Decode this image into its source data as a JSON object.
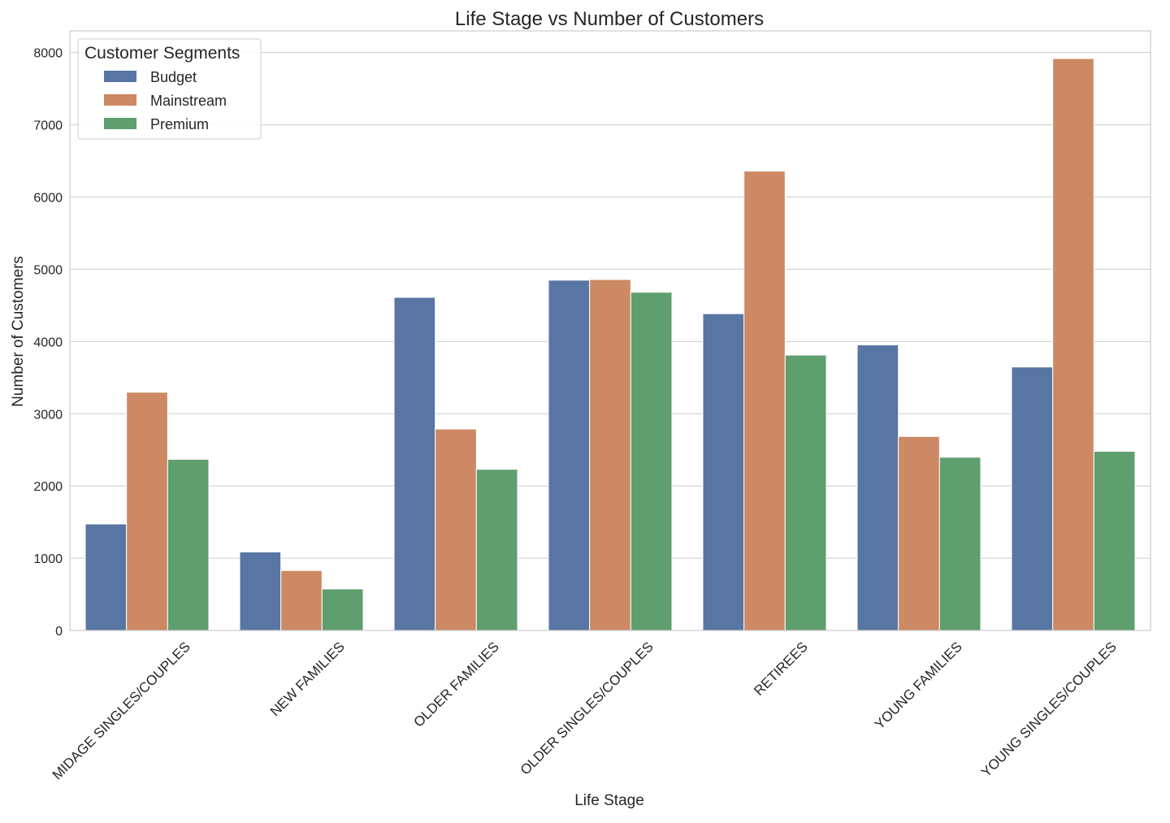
{
  "chart_data": {
    "type": "bar",
    "title": "Life Stage vs Number of Customers",
    "xlabel": "Life Stage",
    "ylabel": "Number of Customers",
    "categories": [
      "MIDAGE SINGLES/COUPLES",
      "NEW FAMILIES",
      "OLDER FAMILIES",
      "OLDER SINGLES/COUPLES",
      "RETIREES",
      "YOUNG FAMILIES",
      "YOUNG SINGLES/COUPLES"
    ],
    "series": [
      {
        "name": "Budget",
        "color": "#5875a4",
        "values": [
          1474,
          1087,
          4611,
          4849,
          4385,
          3953,
          3647
        ]
      },
      {
        "name": "Mainstream",
        "color": "#cc8963",
        "values": [
          3298,
          830,
          2788,
          4858,
          6359,
          2685,
          7917
        ]
      },
      {
        "name": "Premium",
        "color": "#5f9e6e",
        "values": [
          2369,
          575,
          2231,
          4682,
          3812,
          2398,
          2480
        ]
      }
    ],
    "ylim": [
      0,
      8300
    ],
    "yticks": [
      0,
      1000,
      2000,
      3000,
      4000,
      5000,
      6000,
      7000,
      8000
    ],
    "grid": true,
    "legend": {
      "title": "Customer Segments",
      "placement": "top-left"
    }
  }
}
